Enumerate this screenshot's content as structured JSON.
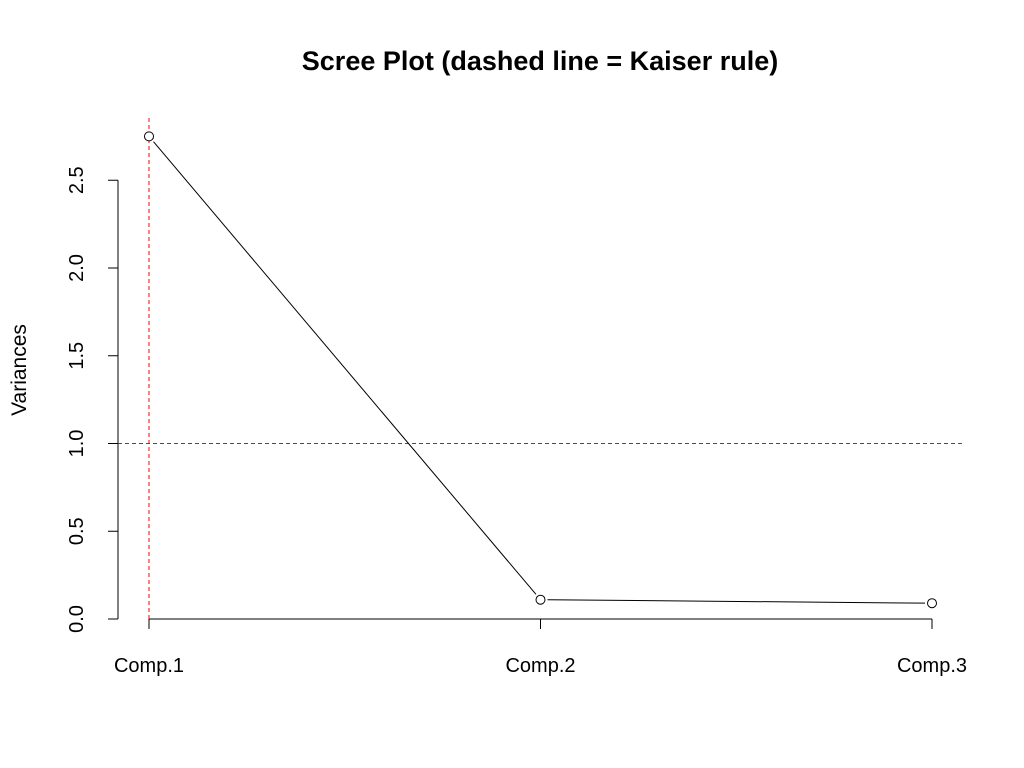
{
  "chart_data": {
    "type": "line",
    "title": "Scree Plot (dashed line = Kaiser rule)",
    "xlabel": "",
    "ylabel": "Variances",
    "categories": [
      "Comp.1",
      "Comp.2",
      "Comp.3"
    ],
    "series": [
      {
        "values": [
          2.75,
          0.11,
          0.09
        ]
      }
    ],
    "ylim": [
      0,
      2.75
    ],
    "yticks": [
      0.0,
      0.5,
      1.0,
      1.5,
      2.0,
      2.5
    ],
    "ytick_labels": [
      "0.0",
      "0.5",
      "1.0",
      "1.5",
      "2.0",
      "2.5"
    ],
    "reference_lines": [
      {
        "orientation": "horizontal",
        "value": 1.0,
        "style": "dashed",
        "color": "#ff0000"
      },
      {
        "orientation": "vertical",
        "category": "Comp.1",
        "style": "dashed",
        "color": "#ff0000"
      }
    ],
    "marker": "open-circle",
    "grid": false,
    "line_color": "#000000"
  }
}
